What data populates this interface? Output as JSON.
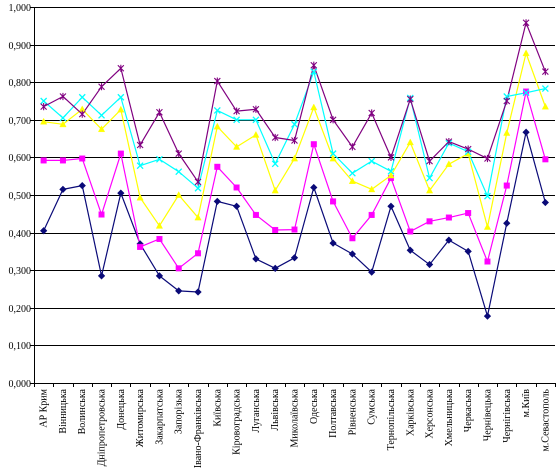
{
  "chart_data": {
    "type": "line",
    "categories": [
      "АР Крим",
      "Вінницька",
      "Волинська",
      "Дніпропетровська",
      "Донецька",
      "Житомирська",
      "Закарпатська",
      "Запорізька",
      "Івано-Франківська",
      "Київська",
      "Кіровоградська",
      "Луганська",
      "Львівська",
      "Миколаївська",
      "Одеська",
      "Полтавська",
      "Рівненська",
      "Сумська",
      "Тернопільська",
      "Харківська",
      "Херсонська",
      "Хмельницька",
      "Черкаська",
      "Чернівецька",
      "Чернігівська",
      "м.Київ",
      "м.Севастополь"
    ],
    "y_tick_labels": [
      "0,000",
      "0,100",
      "0,200",
      "0,300",
      "0,400",
      "0,500",
      "0,600",
      "0,700",
      "0,800",
      "0,900",
      "1,000"
    ],
    "ylim": [
      0,
      1
    ],
    "grid": true,
    "legend": "none",
    "series": [
      {
        "color": "#0a0a78",
        "marker": "diamond",
        "values": [
          0.405,
          0.515,
          0.525,
          0.285,
          0.505,
          0.37,
          0.285,
          0.245,
          0.242,
          0.483,
          0.47,
          0.33,
          0.305,
          0.333,
          0.52,
          0.372,
          0.343,
          0.295,
          0.47,
          0.353,
          0.315,
          0.38,
          0.35,
          0.178,
          0.425,
          0.667,
          0.48
        ]
      },
      {
        "color": "#ff00ff",
        "marker": "square",
        "values": [
          0.592,
          0.592,
          0.597,
          0.448,
          0.61,
          0.362,
          0.383,
          0.305,
          0.345,
          0.575,
          0.52,
          0.447,
          0.407,
          0.408,
          0.635,
          0.483,
          0.385,
          0.447,
          0.545,
          0.403,
          0.43,
          0.44,
          0.452,
          0.323,
          0.525,
          0.775,
          0.595
        ]
      },
      {
        "color": "#ffff00",
        "marker": "triangle",
        "values": [
          0.695,
          0.688,
          0.728,
          0.675,
          0.727,
          0.493,
          0.418,
          0.5,
          0.44,
          0.682,
          0.628,
          0.66,
          0.512,
          0.597,
          0.733,
          0.597,
          0.537,
          0.515,
          0.552,
          0.64,
          0.512,
          0.582,
          0.61,
          0.415,
          0.665,
          0.877,
          0.735
        ]
      },
      {
        "color": "#00ffff",
        "marker": "x",
        "values": [
          0.75,
          0.705,
          0.76,
          0.712,
          0.76,
          0.578,
          0.595,
          0.562,
          0.518,
          0.725,
          0.7,
          0.7,
          0.583,
          0.688,
          0.828,
          0.61,
          0.558,
          0.59,
          0.563,
          0.758,
          0.545,
          0.638,
          0.615,
          0.497,
          0.762,
          0.772,
          0.783
        ]
      },
      {
        "color": "#800080",
        "marker": "star",
        "values": [
          0.735,
          0.762,
          0.715,
          0.788,
          0.837,
          0.633,
          0.72,
          0.61,
          0.535,
          0.803,
          0.723,
          0.728,
          0.653,
          0.645,
          0.845,
          0.7,
          0.628,
          0.718,
          0.6,
          0.755,
          0.59,
          0.642,
          0.622,
          0.597,
          0.75,
          0.958,
          0.828
        ]
      }
    ]
  }
}
